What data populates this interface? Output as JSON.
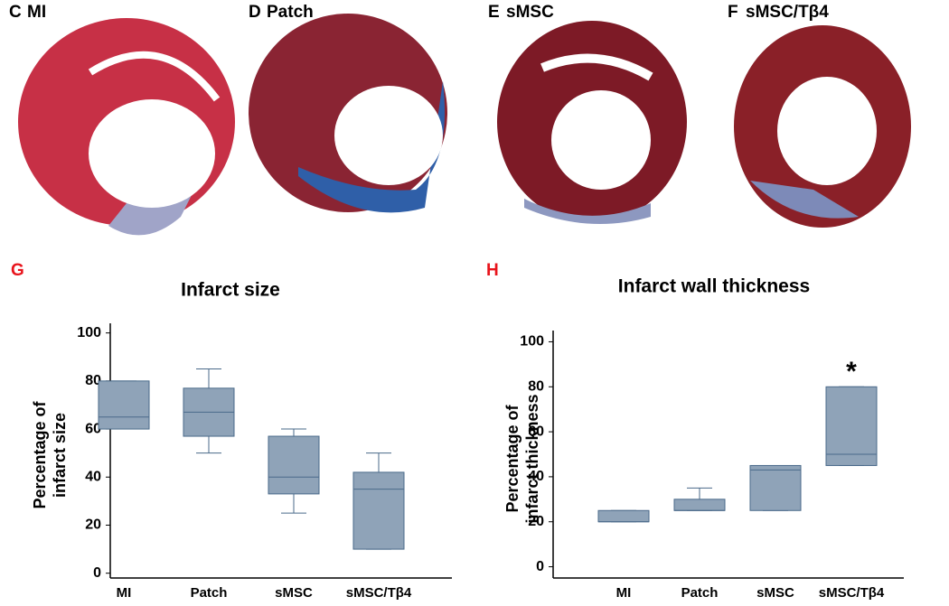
{
  "panels": [
    {
      "letter": "C",
      "label": "MI"
    },
    {
      "letter": "D",
      "label": "Patch"
    },
    {
      "letter": "E",
      "label": "sMSC"
    },
    {
      "letter": "F",
      "label": "sMSC/Tβ4"
    }
  ],
  "chart_data": [
    {
      "type": "box",
      "panel": "G",
      "title": "Infarct size",
      "ylabel": [
        "Percentage of",
        "infarct size"
      ],
      "categories": [
        "MI",
        "Patch",
        "sMSC",
        "sMSC/Tβ4"
      ],
      "boxes": [
        {
          "min": 60,
          "q1": 60,
          "median": 65,
          "q3": 80,
          "max": 80
        },
        {
          "min": 50,
          "q1": 57,
          "median": 67,
          "q3": 77,
          "max": 85
        },
        {
          "min": 25,
          "q1": 33,
          "median": 40,
          "q3": 57,
          "max": 60
        },
        {
          "min": 10,
          "q1": 10,
          "median": 35,
          "q3": 42,
          "max": 50
        }
      ],
      "color": "#8fa3b8",
      "edge_color": "#4a6a8a",
      "ylim": [
        -2,
        104
      ],
      "yticks": [
        0,
        20,
        40,
        60,
        80,
        100
      ]
    },
    {
      "type": "box",
      "panel": "H",
      "title": "Infarct wall thickness",
      "ylabel": [
        "Percentage of",
        "infarct thickness"
      ],
      "categories": [
        "MI",
        "Patch",
        "sMSC",
        "sMSC/Tβ4"
      ],
      "boxes": [
        {
          "min": 20,
          "q1": 20,
          "median": 20,
          "q3": 25,
          "max": 25
        },
        {
          "min": 25,
          "q1": 25,
          "median": 25,
          "q3": 30,
          "max": 35
        },
        {
          "min": 25,
          "q1": 25,
          "median": 43,
          "q3": 45,
          "max": 45
        },
        {
          "min": 45,
          "q1": 45,
          "median": 50,
          "q3": 80,
          "max": 80
        }
      ],
      "annotation": "*",
      "color": "#8fa3b8",
      "edge_color": "#4a6a8a",
      "ylim": [
        -5,
        105
      ],
      "yticks": [
        0,
        20,
        40,
        60,
        80,
        100
      ]
    }
  ]
}
